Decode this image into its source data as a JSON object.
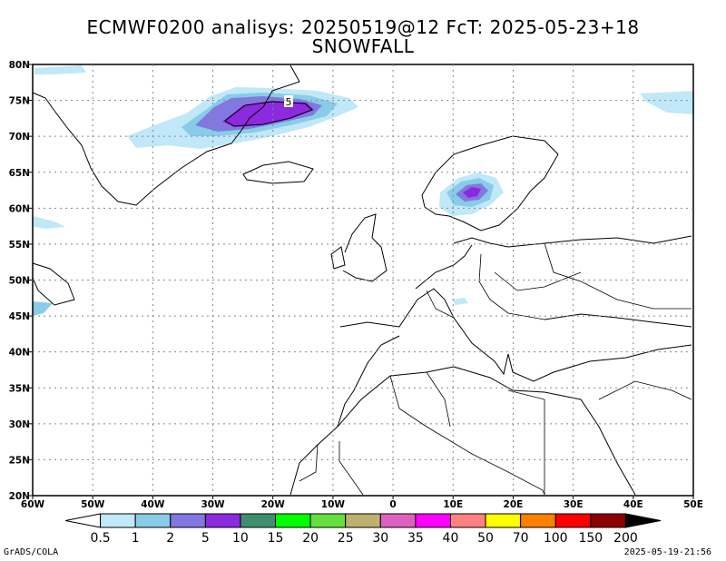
{
  "title_line1": "ECMWF0200 analisys: 20250519@12 FcT: 2025-05-23+18",
  "title_line2": "SNOWFALL",
  "map": {
    "lat_labels": [
      "80N",
      "75N",
      "70N",
      "65N",
      "60N",
      "55N",
      "50N",
      "45N",
      "40N",
      "35N",
      "30N",
      "25N",
      "20N"
    ],
    "lon_labels": [
      "60W",
      "50W",
      "40W",
      "30W",
      "20W",
      "10W",
      "0",
      "10E",
      "20E",
      "30E",
      "40E",
      "50E"
    ],
    "lat_values": [
      80,
      75,
      70,
      65,
      60,
      55,
      50,
      45,
      40,
      35,
      30,
      25,
      20
    ],
    "lon_values": [
      -60,
      -50,
      -40,
      -30,
      -20,
      -10,
      0,
      10,
      20,
      30,
      40,
      50
    ],
    "contour_label": "5"
  },
  "colorbar": {
    "levels": [
      "0.5",
      "1",
      "2",
      "5",
      "10",
      "15",
      "20",
      "25",
      "30",
      "35",
      "40",
      "50",
      "70",
      "100",
      "150",
      "200"
    ],
    "colors": [
      "#c0e8f8",
      "#88cce8",
      "#8278e0",
      "#8c2ae0",
      "#3f8f6f",
      "#00ff00",
      "#66e040",
      "#c0b070",
      "#e060c0",
      "#ff00ff",
      "#ff8080",
      "#ffff00",
      "#ff8000",
      "#ff0000",
      "#8c0000",
      "#000000"
    ]
  },
  "footer_left": "GrADS/COLA",
  "footer_right": "2025-05-19-21:56"
}
